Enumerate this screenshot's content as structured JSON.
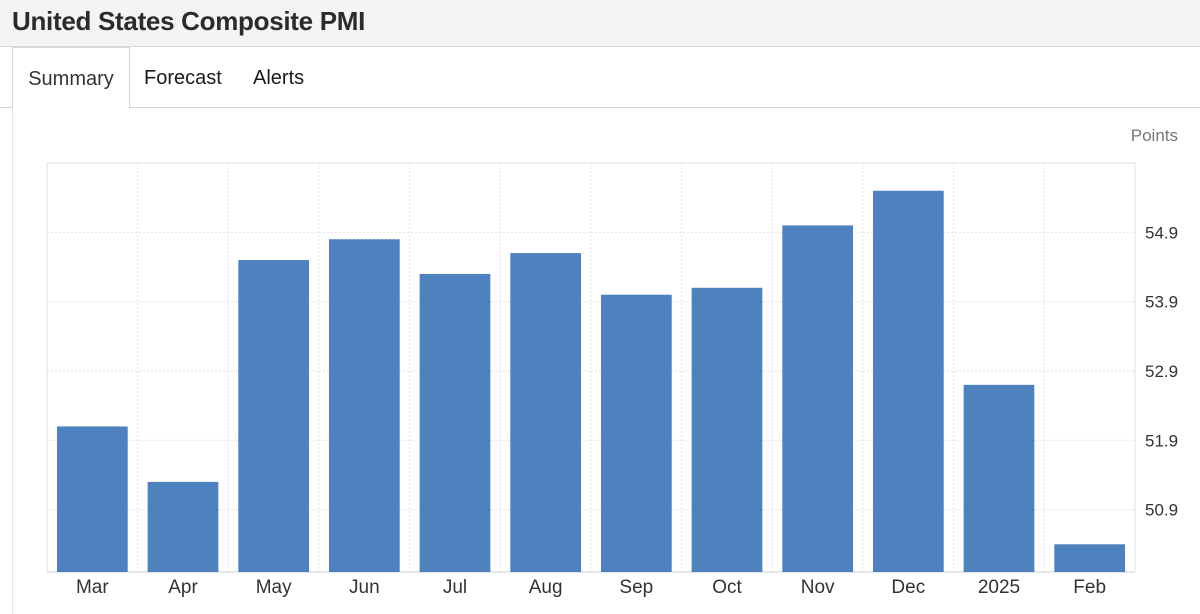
{
  "header": {
    "title": "United States Composite PMI"
  },
  "tabs": [
    {
      "label": "Summary",
      "active": true
    },
    {
      "label": "Forecast",
      "active": false
    },
    {
      "label": "Alerts",
      "active": false
    }
  ],
  "chart_data": {
    "type": "bar",
    "unit_label": "Points",
    "categories": [
      "Mar",
      "Apr",
      "May",
      "Jun",
      "Jul",
      "Aug",
      "Sep",
      "Oct",
      "Nov",
      "Dec",
      "2025",
      "Feb"
    ],
    "values": [
      52.1,
      51.3,
      54.5,
      54.8,
      54.3,
      54.6,
      54.0,
      54.1,
      55.0,
      55.5,
      52.7,
      50.4
    ],
    "yticks": [
      "50.9",
      "51.9",
      "52.9",
      "53.9",
      "54.9"
    ],
    "ylim": [
      50.0,
      55.9
    ],
    "grid": true,
    "axis_side": "right",
    "colors": {
      "bar": "#4d81bf",
      "grid": "#e2e2e2",
      "axis_text": "#333333",
      "unit_text": "#777777"
    }
  }
}
